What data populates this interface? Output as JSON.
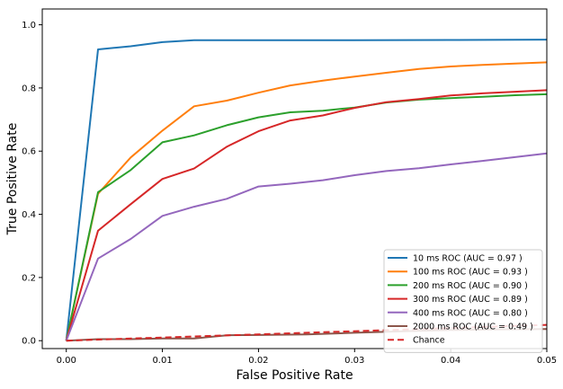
{
  "chart_data": {
    "type": "line",
    "title": "",
    "xlabel": "False Positive Rate",
    "ylabel": "True Positive Rate",
    "xlim": [
      -0.0025,
      0.05
    ],
    "ylim": [
      -0.025,
      1.05
    ],
    "xticks": [
      0.0,
      0.01,
      0.02,
      0.03,
      0.04,
      0.05
    ],
    "xtick_labels": [
      "0.00",
      "0.01",
      "0.02",
      "0.03",
      "0.04",
      "0.05"
    ],
    "yticks": [
      0.0,
      0.2,
      0.4,
      0.6,
      0.8,
      1.0
    ],
    "ytick_labels": [
      "0.0",
      "0.2",
      "0.4",
      "0.6",
      "0.8",
      "1.0"
    ],
    "grid": false,
    "legend_position": "lower-right",
    "series": [
      {
        "name": "10 ms ROC (AUC = 0.97 )",
        "color": "#1f77b4",
        "dashed": false,
        "x": [
          0.0,
          0.0033,
          0.0067,
          0.01,
          0.0133,
          0.02,
          0.03,
          0.04,
          0.05
        ],
        "y": [
          0.0,
          0.922,
          0.932,
          0.945,
          0.951,
          0.951,
          0.951,
          0.952,
          0.953
        ]
      },
      {
        "name": "100 ms ROC (AUC = 0.93 )",
        "color": "#ff7f0e",
        "dashed": false,
        "x": [
          0.0,
          0.0033,
          0.0067,
          0.01,
          0.0133,
          0.0167,
          0.02,
          0.0233,
          0.0267,
          0.03,
          0.0333,
          0.0367,
          0.04,
          0.0433,
          0.0467,
          0.05
        ],
        "y": [
          0.0,
          0.465,
          0.58,
          0.665,
          0.742,
          0.76,
          0.785,
          0.808,
          0.823,
          0.836,
          0.848,
          0.86,
          0.868,
          0.873,
          0.877,
          0.881
        ]
      },
      {
        "name": "200 ms ROC (AUC = 0.90 )",
        "color": "#2ca02c",
        "dashed": false,
        "x": [
          0.0,
          0.0033,
          0.0067,
          0.01,
          0.0133,
          0.0167,
          0.02,
          0.0233,
          0.0267,
          0.03,
          0.0333,
          0.0367,
          0.04,
          0.0433,
          0.0467,
          0.05
        ],
        "y": [
          0.0,
          0.47,
          0.54,
          0.628,
          0.65,
          0.682,
          0.707,
          0.723,
          0.728,
          0.738,
          0.754,
          0.763,
          0.768,
          0.772,
          0.777,
          0.78
        ]
      },
      {
        "name": "300 ms ROC (AUC = 0.89 )",
        "color": "#d62728",
        "dashed": false,
        "x": [
          0.0,
          0.0033,
          0.0067,
          0.01,
          0.0133,
          0.0167,
          0.02,
          0.0233,
          0.0267,
          0.03,
          0.0333,
          0.0367,
          0.04,
          0.0433,
          0.0467,
          0.05
        ],
        "y": [
          0.0,
          0.348,
          0.432,
          0.512,
          0.545,
          0.614,
          0.663,
          0.697,
          0.713,
          0.737,
          0.755,
          0.765,
          0.776,
          0.783,
          0.788,
          0.793
        ]
      },
      {
        "name": "400 ms ROC (AUC = 0.80 )",
        "color": "#9467bd",
        "dashed": false,
        "x": [
          0.0,
          0.0033,
          0.0067,
          0.01,
          0.0133,
          0.0167,
          0.02,
          0.0233,
          0.0267,
          0.03,
          0.0333,
          0.0367,
          0.04,
          0.0433,
          0.0467,
          0.05
        ],
        "y": [
          0.0,
          0.26,
          0.322,
          0.395,
          0.424,
          0.449,
          0.488,
          0.497,
          0.508,
          0.524,
          0.537,
          0.546,
          0.558,
          0.569,
          0.581,
          0.593
        ]
      },
      {
        "name": "2000 ms ROC (AUC = 0.49 )",
        "color": "#8c564b",
        "dashed": false,
        "x": [
          0.0,
          0.0033,
          0.0067,
          0.01,
          0.0133,
          0.0167,
          0.02,
          0.025,
          0.03,
          0.035,
          0.04,
          0.045,
          0.05
        ],
        "y": [
          0.0,
          0.005,
          0.005,
          0.007,
          0.007,
          0.017,
          0.018,
          0.02,
          0.025,
          0.03,
          0.034,
          0.036,
          0.037
        ]
      },
      {
        "name": "Chance",
        "color": "#d62728",
        "dashed": true,
        "x": [
          0.0,
          0.05
        ],
        "y": [
          0.0,
          0.05
        ]
      }
    ]
  }
}
